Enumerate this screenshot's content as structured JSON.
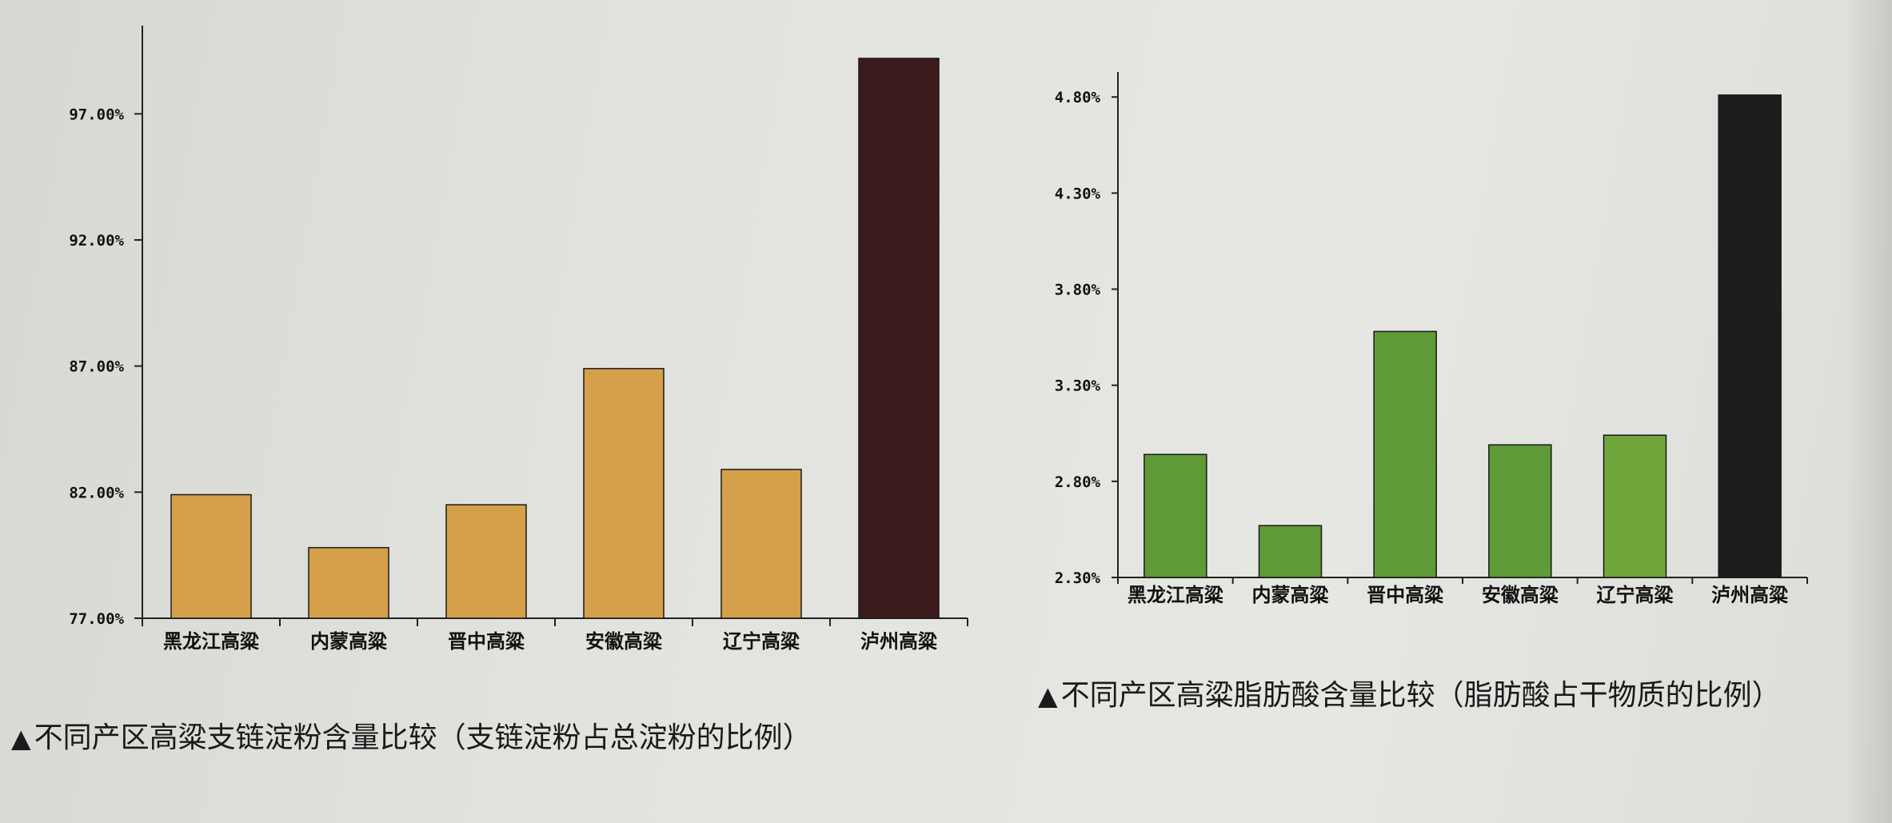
{
  "chart_data": [
    {
      "type": "bar",
      "title": "不同产区高粱支链淀粉含量比较（支链淀粉占总淀粉的比例）",
      "caption_marker": "▲",
      "categories": [
        "黑龙江高粱",
        "内蒙高粱",
        "晋中高粱",
        "安徽高粱",
        "辽宁高粱",
        "泸州高粱"
      ],
      "values": [
        81.9,
        79.8,
        81.5,
        86.9,
        82.9,
        99.2
      ],
      "bar_colors": [
        "#d6a04a",
        "#d6a04a",
        "#d6a04a",
        "#d6a04a",
        "#d6a04a",
        "#3c1b1c"
      ],
      "y_ticks": [
        "77.00%",
        "82.00%",
        "87.00%",
        "92.00%",
        "97.00%"
      ],
      "ylim": [
        77.0,
        100.5
      ],
      "xlabel": "",
      "ylabel": "",
      "grid": false,
      "legend": "none"
    },
    {
      "type": "bar",
      "title": "不同产区高粱脂肪酸含量比较（脂肪酸占干物质的比例）",
      "caption_marker": "▲",
      "categories": [
        "黑龙江高粱",
        "内蒙高粱",
        "晋中高粱",
        "安徽高粱",
        "辽宁高粱",
        "泸州高粱"
      ],
      "values": [
        2.94,
        2.57,
        3.58,
        2.99,
        3.04,
        4.81
      ],
      "bar_colors": [
        "#5e9a35",
        "#5e9a35",
        "#5e9a35",
        "#5e9a35",
        "#6ea63b",
        "#1c1c1c"
      ],
      "y_ticks": [
        "2.30%",
        "2.80%",
        "3.30%",
        "3.80%",
        "4.30%",
        "4.80%"
      ],
      "ylim": [
        2.3,
        4.93
      ],
      "xlabel": "",
      "ylabel": "",
      "grid": false,
      "legend": "none"
    }
  ]
}
